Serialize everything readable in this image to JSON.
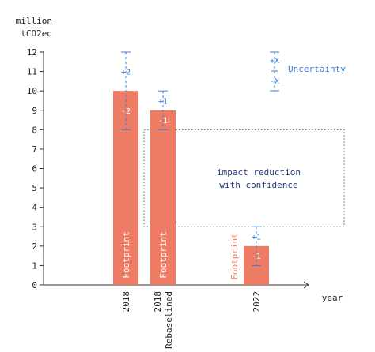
{
  "chart_data": {
    "type": "bar",
    "ylabel_lines": [
      "million",
      "tCO2eq"
    ],
    "xlabel": "year",
    "ylim": [
      0,
      12
    ],
    "yticks": [
      0,
      1,
      2,
      3,
      4,
      5,
      6,
      7,
      8,
      9,
      10,
      11,
      12
    ],
    "grid": false,
    "colors": {
      "bar": "#ee7b63",
      "uncertainty": "#3b7fd9",
      "annotation": "#1f3b78",
      "bar_label_2022": "#ee7b63"
    },
    "bars": [
      {
        "category": "2018",
        "category_lines": [
          "2018"
        ],
        "value": 10,
        "label": "Footprint",
        "unc_plus": 2,
        "unc_minus": 2,
        "plus_label": "+2",
        "minus_label": "-2"
      },
      {
        "category": "2018 Rebaselined",
        "category_lines": [
          "2018",
          "Rebaselined"
        ],
        "value": 9,
        "label": "Footprint",
        "unc_plus": 1,
        "unc_minus": 1,
        "plus_label": "+1",
        "minus_label": "-1"
      },
      {
        "category": "2022",
        "category_lines": [
          "2022"
        ],
        "value": 2,
        "label": "Footprint",
        "unc_plus": 1,
        "unc_minus": 1,
        "plus_label": "+1",
        "minus_label": "-1"
      }
    ],
    "legend": {
      "label": "Uncertainty",
      "plus_label": "+X",
      "minus_label": "-X",
      "placement": "top-right"
    },
    "annotation": {
      "lines": [
        "impact reduction",
        "with confidence"
      ],
      "y_range": [
        3,
        8
      ]
    }
  }
}
